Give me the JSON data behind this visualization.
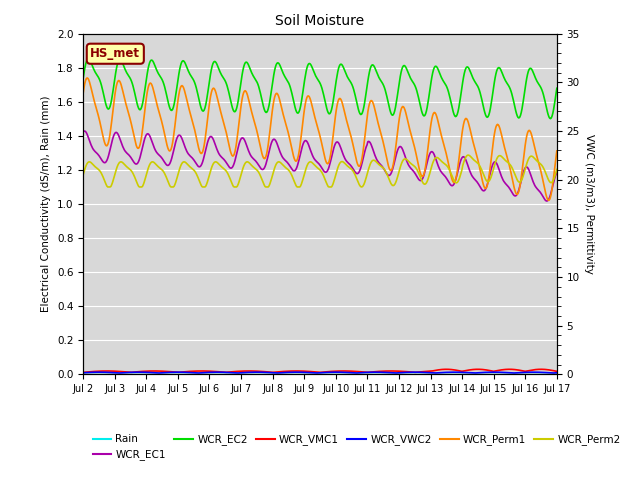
{
  "title": "Soil Moisture",
  "ylabel_left": "Electrical Conductivity (dS/m), Rain (mm)",
  "ylabel_right": "VWC (m3/m3), Permittivity",
  "ylim_left": [
    0.0,
    2.0
  ],
  "ylim_right": [
    0,
    35
  ],
  "bg_color": "#d8d8d8",
  "fig_color": "#ffffff",
  "legend_label": "HS_met",
  "series_colors": {
    "Rain": "#00eeee",
    "WCR_EC1": "#aa00aa",
    "WCR_EC2": "#00dd00",
    "WCR_VMC1": "#ff0000",
    "WCR_VWC2": "#0000ff",
    "WCR_Perm1": "#ff8800",
    "WCR_Perm2": "#cccc00"
  },
  "x_ticks": [
    "Jul 2",
    "Jul 3",
    "Jul 4",
    "Jul 5",
    "Jul 6",
    "Jul 7",
    "Jul 8",
    "Jul 9",
    "Jul 10",
    "Jul 11",
    "Jul 12",
    "Jul 13",
    "Jul 14",
    "Jul 15",
    "Jul 16",
    "Jul 17"
  ],
  "n_points": 600
}
